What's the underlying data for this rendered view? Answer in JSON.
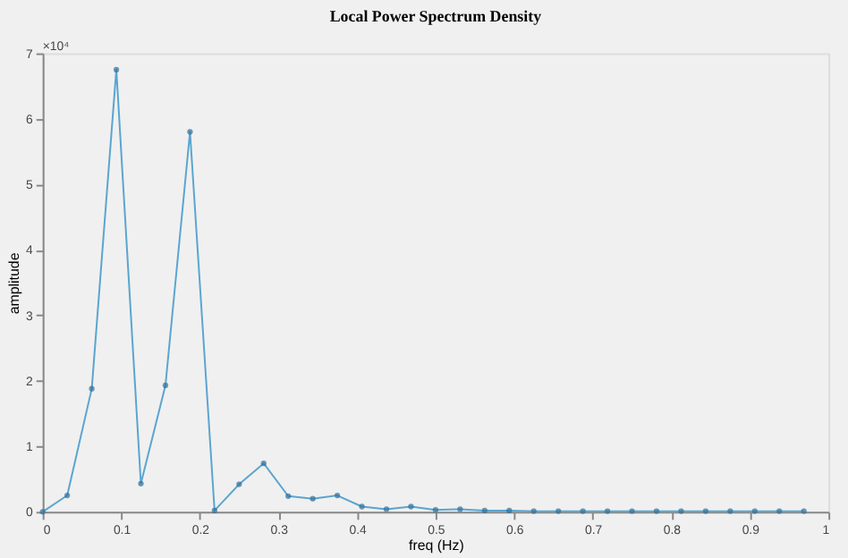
{
  "chart_data": {
    "type": "line",
    "title": "Local Power Spectrum Density",
    "xlabel": "freq (Hz)",
    "ylabel": "amplitude",
    "annotations": [
      "×10⁴"
    ],
    "x": [
      0,
      0.03125,
      0.0625,
      0.09375,
      0.125,
      0.15625,
      0.1875,
      0.21875,
      0.25,
      0.28125,
      0.3125,
      0.34375,
      0.375,
      0.40625,
      0.4375,
      0.46875,
      0.5,
      0.53125,
      0.5625,
      0.59375,
      0.625,
      0.65625,
      0.6875,
      0.71875,
      0.75,
      0.78125,
      0.8125,
      0.84375,
      0.875,
      0.90625,
      0.9375,
      0.96875
    ],
    "series": [
      {
        "color": "#5aa5d0",
        "values": [
          0,
          0.25,
          1.88,
          6.75,
          0.43,
          1.93,
          5.8,
          0.02,
          0.42,
          0.74,
          0.24,
          0.2,
          0.25,
          0.08,
          0.04,
          0.08,
          0.03,
          0.04,
          0.02,
          0.02,
          0.01,
          0.01,
          0.01,
          0.01,
          0.01,
          0.01,
          0.01,
          0.01,
          0.01,
          0.01,
          0.01,
          0.01
        ]
      }
    ],
    "xlim": [
      0,
      1
    ],
    "xticks": [
      0,
      0.1,
      0.2,
      0.3,
      0.4,
      0.5,
      0.6,
      0.7,
      0.8,
      0.9,
      1
    ],
    "ylim": [
      0,
      7
    ],
    "yticks": [
      0,
      1,
      2,
      3,
      4,
      5,
      6,
      7
    ],
    "grid": false,
    "marker": "circle",
    "line_style": "solid"
  }
}
